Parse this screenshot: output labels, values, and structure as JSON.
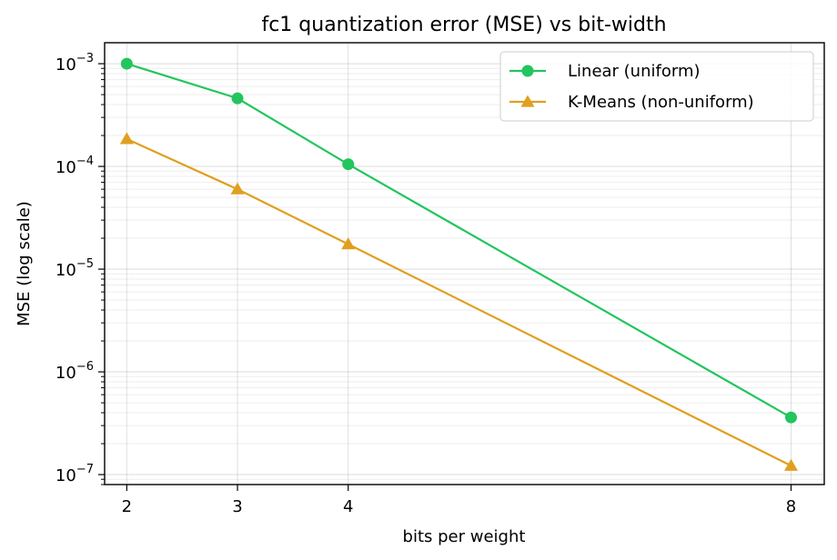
{
  "chart_data": {
    "type": "line",
    "title": "fc1 quantization error (MSE) vs bit-width",
    "xlabel": "bits per weight",
    "ylabel": "MSE (log scale)",
    "yscale": "log",
    "xlim": [
      1.8,
      8.3
    ],
    "ylim": [
      8e-08,
      0.0016
    ],
    "xticks": [
      2,
      3,
      4,
      8
    ],
    "xtick_labels": [
      "2",
      "3",
      "4",
      "8"
    ],
    "yticks": [
      1e-07,
      1e-06,
      1e-05,
      0.0001,
      0.001
    ],
    "ytick_exponents": [
      "−7",
      "−6",
      "−5",
      "−4",
      "−3"
    ],
    "ytick_base": "10",
    "grid": true,
    "legend_position": "top-right",
    "series": [
      {
        "name": "Linear (uniform)",
        "color": "#22c55e",
        "marker": "circle",
        "x": [
          2,
          3,
          4,
          8
        ],
        "y": [
          0.001,
          0.00046,
          0.000105,
          3.6e-07
        ]
      },
      {
        "name": "K-Means (non-uniform)",
        "color": "#e09f1f",
        "marker": "triangle",
        "x": [
          2,
          3,
          4,
          8
        ],
        "y": [
          0.000185,
          6e-05,
          1.75e-05,
          1.22e-07
        ]
      }
    ]
  }
}
